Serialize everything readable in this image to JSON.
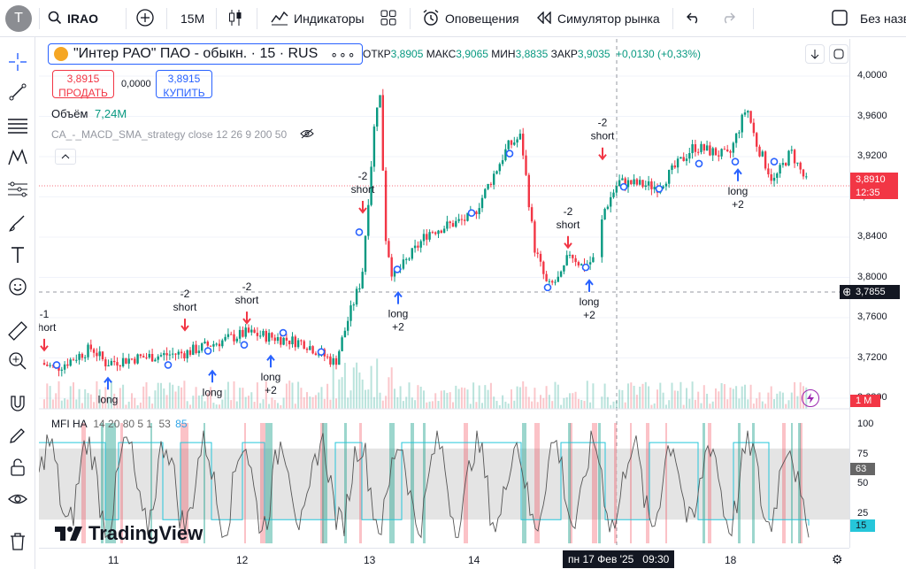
{
  "topbar": {
    "avatar_letter": "T",
    "symbol": "IRAO",
    "interval": "15M",
    "indicators_label": "Индикаторы",
    "alerts_label": "Оповещения",
    "replay_label": "Симулятор рынка",
    "layout_label": "Без назв"
  },
  "legend": {
    "title": "\"Интер РАО\" ПАО - обыкн. · 15 · RUS",
    "open_label": "ОТКР",
    "open": "3,8905",
    "high_label": "МАКС",
    "high": "3,9065",
    "low_label": "МИН",
    "low": "3,8835",
    "close_label": "ЗАКР",
    "close": "3,9035",
    "change": "+0,0130 (+0,33%)",
    "sell_price": "3,8915",
    "sell_label": "ПРОДАТЬ",
    "spread": "0,0000",
    "buy_price": "3,8915",
    "buy_label": "КУПИТЬ",
    "volume_label": "Объём",
    "volume_value": "7,24M",
    "strategy": "CA_-_MACD_SMA_strategy close 12 26 9 200 50",
    "mfi_label": "MFI HA",
    "mfi_params": "14 20 80 5 1",
    "mfi_v1": "53",
    "mfi_v2": "85"
  },
  "price_axis": {
    "labels": [
      "4,0000",
      "3,9600",
      "3,9200",
      "3,8800",
      "3,8400",
      "3,8000",
      "3,7600",
      "3,7200",
      "3,6800"
    ],
    "current_price": "3,8910",
    "countdown": "12:35",
    "crosshair_price": "3,7855",
    "volume_tag": "1 M",
    "mfi_labels": [
      "100",
      "75",
      "50",
      "25"
    ],
    "mfi_value": "63",
    "mfi_low_tag": "15"
  },
  "time_axis": {
    "labels": [
      "11",
      "12",
      "13",
      "14",
      "18"
    ],
    "crosshair_time": "пн 17 Фев '25   09:30"
  },
  "signals": [
    {
      "text1": "-1",
      "text2": "short"
    },
    {
      "text1": "-2",
      "text2": "short"
    },
    {
      "text1": "-2",
      "text2": "short"
    },
    {
      "text1": "-2",
      "text2": "short"
    },
    {
      "text1": "-2",
      "text2": "short"
    },
    {
      "text1": "-2",
      "text2": "short"
    },
    {
      "text1": "long",
      "text2": ""
    },
    {
      "text1": "long",
      "text2": "+2"
    },
    {
      "text1": "long",
      "text2": "+2"
    },
    {
      "text1": "long",
      "text2": "+2"
    },
    {
      "text1": "long",
      "text2": "+2"
    }
  ],
  "watermark": "TradingView",
  "colors": {
    "up": "#26a69a",
    "down": "#ef5350",
    "accent": "#2962ff",
    "sell": "#f23645",
    "buy": "#2962ff"
  }
}
